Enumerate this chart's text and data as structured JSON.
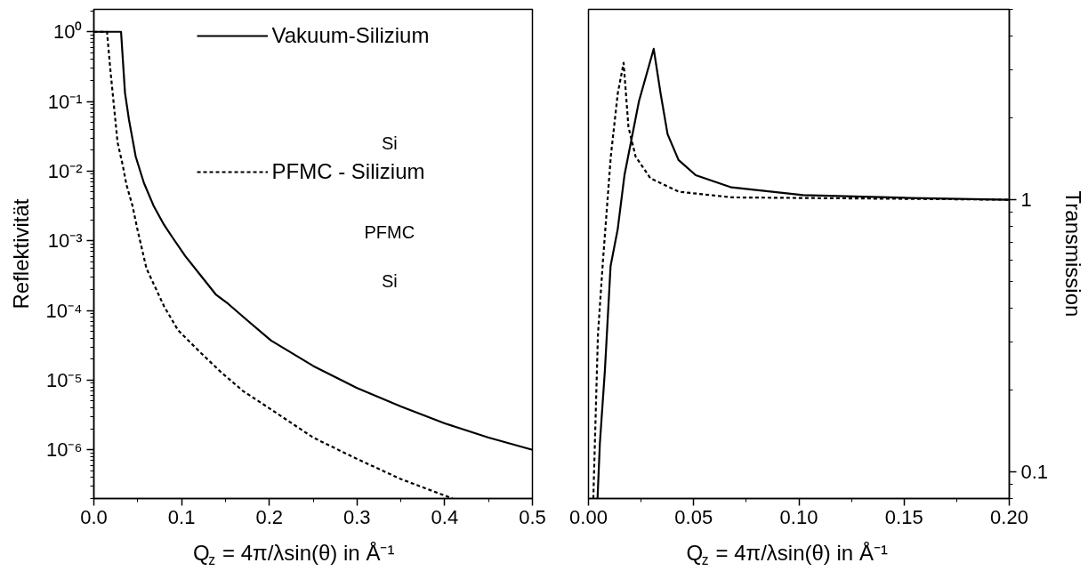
{
  "chart_data": [
    {
      "type": "line",
      "xlabel": "Q$_{z}$ = 4π/λsin(θ) in Å⁻¹",
      "ylabel": "Reflektivität",
      "log": "y",
      "legend": "top",
      "xlim": [
        0,
        0.5
      ],
      "xticks": [
        {
          "value": 0,
          "label": "0.0"
        },
        0.1,
        0.2,
        0.3,
        0.4,
        0.5
      ],
      "ylim": [
        2e-07,
        2.1
      ],
      "yticks": [
        {
          "value": 1,
          "label": "10⁰"
        },
        {
          "value": 0.1,
          "label": "10⁻¹"
        },
        {
          "value": 0.01,
          "label": "10⁻²"
        },
        {
          "value": 0.001,
          "label": "10⁻³"
        },
        {
          "value": 0.0001,
          "label": "10⁻⁴"
        },
        {
          "value": 1e-05,
          "label": "10⁻⁵"
        },
        {
          "value": 1e-06,
          "label": "10⁻⁶"
        }
      ],
      "annotations": [
        "Si",
        "PFMC",
        "Si"
      ],
      "series": [
        {
          "name": "Vakuum-Silizium",
          "color": "#000000",
          "line_style": "solid",
          "x": [
            0,
            0.031,
            0.0355,
            0.04,
            0.0477,
            0.057,
            0.068,
            0.08,
            0.09,
            0.104,
            0.12,
            0.139,
            0.153,
            0.175,
            0.202,
            0.25,
            0.3,
            0.35,
            0.4,
            0.45,
            0.5
          ],
          "values": [
            1,
            1,
            0.133,
            0.055,
            0.0162,
            0.0068,
            0.0032,
            0.0017,
            0.0011,
            0.00061,
            0.00034,
            0.00017,
            0.000125,
            7.2e-05,
            3.7e-05,
            1.6e-05,
            7.7e-06,
            4.2e-06,
            2.4e-06,
            1.5e-06,
            1e-06
          ]
        },
        {
          "name": "PFMC - Silizium",
          "color": "#000000",
          "line_style": "dotted",
          "x": [
            0,
            0.015,
            0.019,
            0.027,
            0.033,
            0.037,
            0.044,
            0.05,
            0.06,
            0.08,
            0.096,
            0.12,
            0.145,
            0.17,
            0.202,
            0.25,
            0.299,
            0.35,
            0.409
          ],
          "values": [
            1,
            1,
            0.27,
            0.026,
            0.012,
            0.0065,
            0.0032,
            0.0014,
            0.0004,
            0.000115,
            5.2e-05,
            2.6e-05,
            1.3e-05,
            7e-06,
            3.8e-06,
            1.5e-06,
            7.5e-07,
            3.8e-07,
            2e-07
          ]
        }
      ]
    },
    {
      "type": "line",
      "xlabel": "Q$_{z}$ = 4π/λsin(θ) in Å⁻¹",
      "y2label": "Transmission",
      "log": "y2",
      "xlim": [
        0,
        0.2
      ],
      "xticks": [
        {
          "value": 0,
          "label": "0.00"
        },
        {
          "value": 0.05,
          "label": "0.05"
        },
        {
          "value": 0.1,
          "label": "0.10"
        },
        {
          "value": 0.15,
          "label": "0.15"
        },
        {
          "value": 0.2,
          "label": "0.20"
        }
      ],
      "y2lim": [
        0.08,
        5
      ],
      "y2ticks": [
        0.1,
        1
      ],
      "series": [
        {
          "color": "#000000",
          "axis": "y2",
          "line_style": "solid",
          "x": [
            0.0043,
            0.0054,
            0.0078,
            0.0105,
            0.0139,
            0.0171,
            0.024,
            0.031,
            0.0343,
            0.0376,
            0.0428,
            0.051,
            0.068,
            0.102,
            0.153,
            0.2
          ],
          "values": [
            0.08,
            0.127,
            0.236,
            0.57,
            0.78,
            1.23,
            2.3,
            3.58,
            2.45,
            1.74,
            1.4,
            1.23,
            1.11,
            1.04,
            1.015,
            1.0
          ]
        },
        {
          "color": "#000000",
          "axis": "y2",
          "line_style": "dotted",
          "x": [
            0.0023,
            0.0045,
            0.0069,
            0.0106,
            0.0139,
            0.0167,
            0.019,
            0.0224,
            0.0294,
            0.043,
            0.068,
            0.2
          ],
          "values": [
            0.08,
            0.32,
            0.6,
            1.44,
            2.45,
            3.18,
            1.85,
            1.44,
            1.2,
            1.07,
            1.02,
            1.0
          ]
        }
      ]
    }
  ]
}
